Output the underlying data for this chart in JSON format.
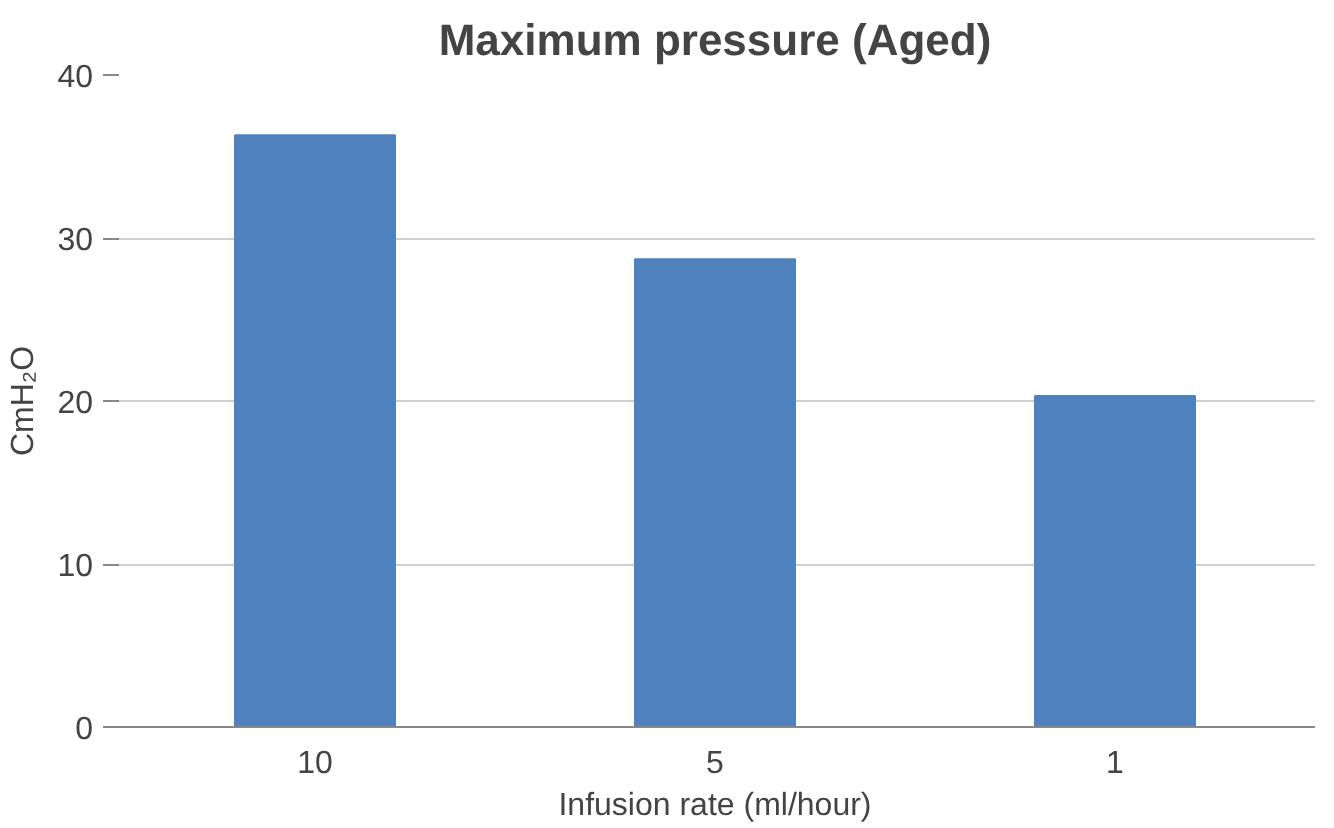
{
  "chart_data": {
    "type": "bar",
    "title": "Maximum pressure (Aged)",
    "xlabel": "Infusion rate (ml/hour)",
    "ylabel": "CmH₂O",
    "categories": [
      "10",
      "5",
      "1"
    ],
    "values": [
      36.3,
      28.7,
      20.3
    ],
    "color": "#4f81bd",
    "ylim": [
      0,
      40
    ],
    "yticks": [
      0,
      10,
      20,
      30,
      40
    ],
    "grid": "y"
  }
}
